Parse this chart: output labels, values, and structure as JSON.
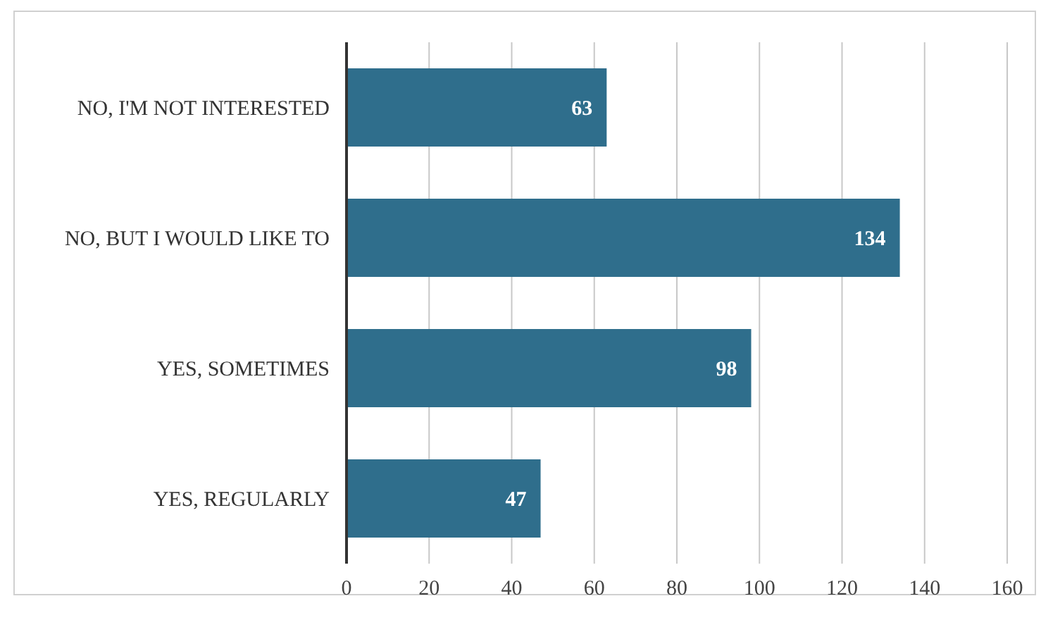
{
  "chart_data": {
    "type": "bar",
    "orientation": "horizontal",
    "categories": [
      "NO, I'M NOT INTERESTED",
      "NO, BUT I WOULD LIKE TO",
      "YES, SOMETIMES",
      "YES, REGULARLY"
    ],
    "values": [
      63,
      134,
      98,
      47
    ],
    "color": "#2f6e8c",
    "xlim": [
      0,
      160
    ],
    "xticks": [
      0,
      20,
      40,
      60,
      80,
      100,
      120,
      140,
      160
    ],
    "grid": "x",
    "data_labels": true
  }
}
